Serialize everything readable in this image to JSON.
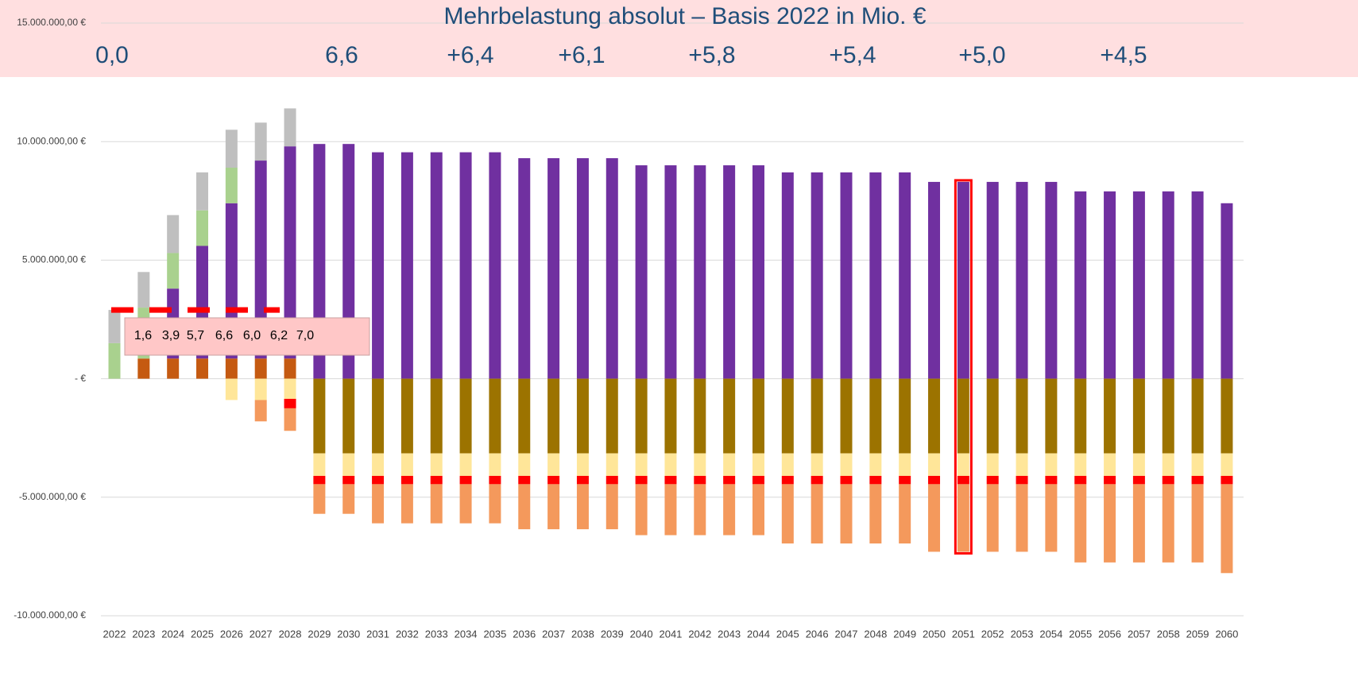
{
  "chart_data": {
    "type": "stacked_bar",
    "title": "Mehrbelastung absolut – Basis 2022 in Mio. €",
    "annotations": [
      "0,0",
      "6,6",
      "+6,4",
      "+6,1",
      "+5,8",
      "+5,4",
      "+5,0",
      "+4,5"
    ],
    "box_labels": [
      "1,6",
      "3,9",
      "5,7",
      "6,6",
      "6,0",
      "6,2",
      "7,0"
    ],
    "categories": [
      "2022",
      "2023",
      "2024",
      "2025",
      "2026",
      "2027",
      "2028",
      "2029",
      "2030",
      "2031",
      "2032",
      "2033",
      "2034",
      "2035",
      "2036",
      "2037",
      "2038",
      "2039",
      "2040",
      "2041",
      "2042",
      "2043",
      "2044",
      "2045",
      "2046",
      "2047",
      "2048",
      "2049",
      "2050",
      "2051",
      "2052",
      "2053",
      "2054",
      "2055",
      "2056",
      "2057",
      "2058",
      "2059",
      "2060"
    ],
    "ylim": [
      -10000000,
      15000000
    ],
    "yticks": [
      {
        "value": -10000000,
        "label": "-10.000.000,00 €"
      },
      {
        "value": -5000000,
        "label": "-5.000.000,00 €"
      },
      {
        "value": 0,
        "label": "-  €"
      },
      {
        "value": 5000000,
        "label": "5.000.000,00 €"
      },
      {
        "value": 10000000,
        "label": "10.000.000,00 €"
      },
      {
        "value": 15000000,
        "label": "15.000.000,00 €"
      }
    ],
    "grid": true,
    "reference_line": {
      "value": 2900000,
      "color": "#ff0000"
    },
    "highlight_index": 29,
    "series": [
      {
        "color": "#c55a11",
        "values": [
          null,
          850000,
          850000,
          850000,
          850000,
          850000,
          850000,
          null,
          null,
          null,
          null,
          null,
          null,
          null,
          null,
          null,
          null,
          null,
          null,
          null,
          null,
          null,
          null,
          null,
          null,
          null,
          null,
          null,
          null,
          null,
          null,
          null,
          null,
          null,
          null,
          null,
          null,
          null,
          null
        ]
      },
      {
        "color": "#7030a0",
        "values": [
          null,
          null,
          2950000,
          4750000,
          6550000,
          8350000,
          8950000,
          9900000,
          9900000,
          9550000,
          9550000,
          9550000,
          9550000,
          9550000,
          9300000,
          9300000,
          9300000,
          9300000,
          9000000,
          9000000,
          9000000,
          9000000,
          9000000,
          8700000,
          8700000,
          8700000,
          8700000,
          8700000,
          8300000,
          8300000,
          8300000,
          8300000,
          8300000,
          7900000,
          7900000,
          7900000,
          7900000,
          7900000,
          7400000
        ]
      },
      {
        "color": "#a9d18e",
        "values": [
          1500000,
          2150000,
          1500000,
          1500000,
          1500000,
          null,
          null,
          null,
          null,
          null,
          null,
          null,
          null,
          null,
          null,
          null,
          null,
          null,
          null,
          null,
          null,
          null,
          null,
          null,
          null,
          null,
          null,
          null,
          null,
          null,
          null,
          null,
          null,
          null,
          null,
          null,
          null,
          null,
          null
        ]
      },
      {
        "color": "#bfbfbf",
        "values": [
          1400000,
          1500000,
          1600000,
          1600000,
          1600000,
          1600000,
          1600000,
          null,
          null,
          null,
          null,
          null,
          null,
          null,
          null,
          null,
          null,
          null,
          null,
          null,
          null,
          null,
          null,
          null,
          null,
          null,
          null,
          null,
          null,
          null,
          null,
          null,
          null,
          null,
          null,
          null,
          null,
          null,
          null
        ]
      },
      {
        "color": "#9c7300",
        "values": [
          null,
          null,
          null,
          null,
          null,
          null,
          null,
          -3150000,
          -3150000,
          -3150000,
          -3150000,
          -3150000,
          -3150000,
          -3150000,
          -3150000,
          -3150000,
          -3150000,
          -3150000,
          -3150000,
          -3150000,
          -3150000,
          -3150000,
          -3150000,
          -3150000,
          -3150000,
          -3150000,
          -3150000,
          -3150000,
          -3150000,
          -3150000,
          -3150000,
          -3150000,
          -3150000,
          -3150000,
          -3150000,
          -3150000,
          -3150000,
          -3150000,
          -3150000
        ]
      },
      {
        "color": "#ffe699",
        "values": [
          null,
          null,
          null,
          null,
          -900000,
          -900000,
          -850000,
          -950000,
          -950000,
          -950000,
          -950000,
          -950000,
          -950000,
          -950000,
          -950000,
          -950000,
          -950000,
          -950000,
          -950000,
          -950000,
          -950000,
          -950000,
          -950000,
          -950000,
          -950000,
          -950000,
          -950000,
          -950000,
          -950000,
          -950000,
          -950000,
          -950000,
          -950000,
          -950000,
          -950000,
          -950000,
          -950000,
          -950000,
          -950000
        ]
      },
      {
        "color": "#ff0000",
        "values": [
          null,
          null,
          null,
          null,
          null,
          null,
          -400000,
          -350000,
          -350000,
          -350000,
          -350000,
          -350000,
          -350000,
          -350000,
          -350000,
          -350000,
          -350000,
          -350000,
          -350000,
          -350000,
          -350000,
          -350000,
          -350000,
          -350000,
          -350000,
          -350000,
          -350000,
          -350000,
          -350000,
          -350000,
          -350000,
          -350000,
          -350000,
          -350000,
          -350000,
          -350000,
          -350000,
          -350000,
          -350000
        ]
      },
      {
        "color": "#f4995c",
        "values": [
          null,
          null,
          null,
          null,
          null,
          -900000,
          -950000,
          -1250000,
          -1250000,
          -1650000,
          -1650000,
          -1650000,
          -1650000,
          -1650000,
          -1900000,
          -1900000,
          -1900000,
          -1900000,
          -2150000,
          -2150000,
          -2150000,
          -2150000,
          -2150000,
          -2500000,
          -2500000,
          -2500000,
          -2500000,
          -2500000,
          -2850000,
          -2850000,
          -2850000,
          -2850000,
          -2850000,
          -3300000,
          -3300000,
          -3300000,
          -3300000,
          -3300000,
          -3750000
        ]
      }
    ]
  }
}
